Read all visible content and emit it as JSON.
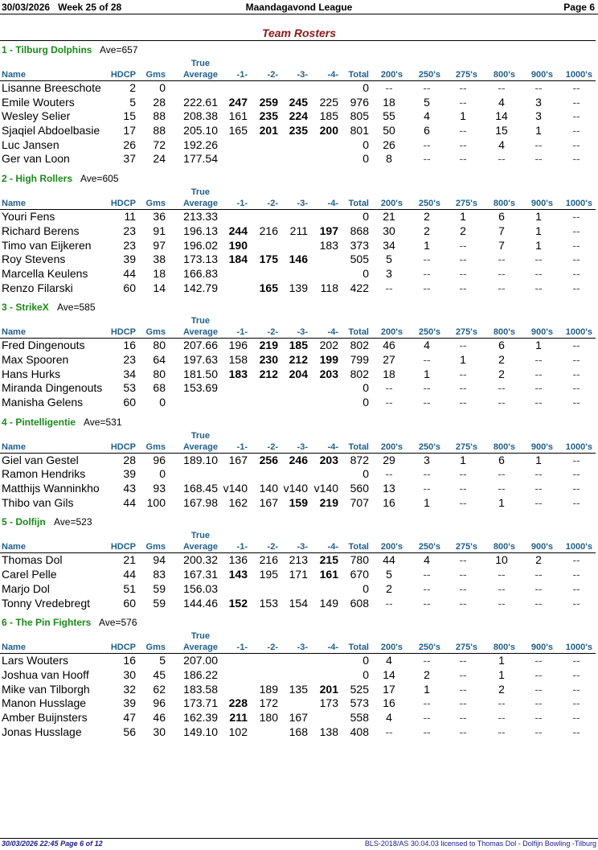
{
  "header": {
    "date": "30/03/2026",
    "week": "Week 25 of 28",
    "league": "Maandagavond League",
    "page": "Page 6"
  },
  "title": "Team Rosters",
  "columns": {
    "true_label": "True",
    "name": "Name",
    "hdcp": "HDCP",
    "gms": "Gms",
    "avg": "Average",
    "g1": "-1-",
    "g2": "-2-",
    "g3": "-3-",
    "g4": "-4-",
    "total": "Total",
    "c200": "200's",
    "c250": "250's",
    "c275": "275's",
    "c800": "800's",
    "c900": "900's",
    "c1000": "1000's"
  },
  "teams": [
    {
      "name": "1 - Tilburg Dolphins",
      "ave": "Ave=657",
      "players": [
        {
          "name": "Lisanne Breeschote",
          "hdcp": "2",
          "gms": "0",
          "avg": "",
          "g1": "",
          "g2": "",
          "g3": "",
          "g4": "",
          "total": "0",
          "c200": "--",
          "c250": "--",
          "c275": "--",
          "c800": "--",
          "c900": "--",
          "c1000": "--",
          "bold": []
        },
        {
          "name": "Emile Wouters",
          "hdcp": "5",
          "gms": "28",
          "avg": "222.61",
          "g1": "247",
          "g2": "259",
          "g3": "245",
          "g4": "225",
          "total": "976",
          "c200": "18",
          "c250": "5",
          "c275": "--",
          "c800": "4",
          "c900": "3",
          "c1000": "--",
          "bold": [
            "g1",
            "g2",
            "g3"
          ]
        },
        {
          "name": "Wesley Selier",
          "hdcp": "15",
          "gms": "88",
          "avg": "208.38",
          "g1": "161",
          "g2": "235",
          "g3": "224",
          "g4": "185",
          "total": "805",
          "c200": "55",
          "c250": "4",
          "c275": "1",
          "c800": "14",
          "c900": "3",
          "c1000": "--",
          "bold": [
            "g2",
            "g3"
          ]
        },
        {
          "name": "Sjaqiel Abdoelbasie",
          "hdcp": "17",
          "gms": "88",
          "avg": "205.10",
          "g1": "165",
          "g2": "201",
          "g3": "235",
          "g4": "200",
          "total": "801",
          "c200": "50",
          "c250": "6",
          "c275": "--",
          "c800": "15",
          "c900": "1",
          "c1000": "--",
          "bold": [
            "g2",
            "g3",
            "g4"
          ]
        },
        {
          "name": "Luc Jansen",
          "hdcp": "26",
          "gms": "72",
          "avg": "192.26",
          "g1": "",
          "g2": "",
          "g3": "",
          "g4": "",
          "total": "0",
          "c200": "26",
          "c250": "--",
          "c275": "--",
          "c800": "4",
          "c900": "--",
          "c1000": "--",
          "bold": []
        },
        {
          "name": "Ger van Loon",
          "hdcp": "37",
          "gms": "24",
          "avg": "177.54",
          "g1": "",
          "g2": "",
          "g3": "",
          "g4": "",
          "total": "0",
          "c200": "8",
          "c250": "--",
          "c275": "--",
          "c800": "--",
          "c900": "--",
          "c1000": "--",
          "bold": []
        }
      ]
    },
    {
      "name": "2 - High Rollers",
      "ave": "Ave=605",
      "players": [
        {
          "name": "Youri Fens",
          "hdcp": "11",
          "gms": "36",
          "avg": "213.33",
          "g1": "",
          "g2": "",
          "g3": "",
          "g4": "",
          "total": "0",
          "c200": "21",
          "c250": "2",
          "c275": "1",
          "c800": "6",
          "c900": "1",
          "c1000": "--",
          "bold": []
        },
        {
          "name": "Richard Berens",
          "hdcp": "23",
          "gms": "91",
          "avg": "196.13",
          "g1": "244",
          "g2": "216",
          "g3": "211",
          "g4": "197",
          "total": "868",
          "c200": "30",
          "c250": "2",
          "c275": "2",
          "c800": "7",
          "c900": "1",
          "c1000": "--",
          "bold": [
            "g1",
            "g4"
          ]
        },
        {
          "name": "Timo van Eijkeren",
          "hdcp": "23",
          "gms": "97",
          "avg": "196.02",
          "g1": "190",
          "g2": "",
          "g3": "",
          "g4": "183",
          "total": "373",
          "c200": "34",
          "c250": "1",
          "c275": "--",
          "c800": "7",
          "c900": "1",
          "c1000": "--",
          "bold": [
            "g1"
          ]
        },
        {
          "name": "Roy Stevens",
          "hdcp": "39",
          "gms": "38",
          "avg": "173.13",
          "g1": "184",
          "g2": "175",
          "g3": "146",
          "g4": "",
          "total": "505",
          "c200": "5",
          "c250": "--",
          "c275": "--",
          "c800": "--",
          "c900": "--",
          "c1000": "--",
          "bold": [
            "g1",
            "g2",
            "g3"
          ]
        },
        {
          "name": "Marcella Keulens",
          "hdcp": "44",
          "gms": "18",
          "avg": "166.83",
          "g1": "",
          "g2": "",
          "g3": "",
          "g4": "",
          "total": "0",
          "c200": "3",
          "c250": "--",
          "c275": "--",
          "c800": "--",
          "c900": "--",
          "c1000": "--",
          "bold": []
        },
        {
          "name": "Renzo Filarski",
          "hdcp": "60",
          "gms": "14",
          "avg": "142.79",
          "g1": "",
          "g2": "165",
          "g3": "139",
          "g4": "118",
          "total": "422",
          "c200": "--",
          "c250": "--",
          "c275": "--",
          "c800": "--",
          "c900": "--",
          "c1000": "--",
          "bold": [
            "g2"
          ]
        }
      ]
    },
    {
      "name": "3 - StrikeX",
      "ave": "Ave=585",
      "players": [
        {
          "name": "Fred Dingenouts",
          "hdcp": "16",
          "gms": "80",
          "avg": "207.66",
          "g1": "196",
          "g2": "219",
          "g3": "185",
          "g4": "202",
          "total": "802",
          "c200": "46",
          "c250": "4",
          "c275": "--",
          "c800": "6",
          "c900": "1",
          "c1000": "--",
          "bold": [
            "g2",
            "g3"
          ]
        },
        {
          "name": "Max Spooren",
          "hdcp": "23",
          "gms": "64",
          "avg": "197.63",
          "g1": "158",
          "g2": "230",
          "g3": "212",
          "g4": "199",
          "total": "799",
          "c200": "27",
          "c250": "--",
          "c275": "1",
          "c800": "2",
          "c900": "--",
          "c1000": "--",
          "bold": [
            "g2",
            "g3",
            "g4"
          ]
        },
        {
          "name": "Hans Hurks",
          "hdcp": "34",
          "gms": "80",
          "avg": "181.50",
          "g1": "183",
          "g2": "212",
          "g3": "204",
          "g4": "203",
          "total": "802",
          "c200": "18",
          "c250": "1",
          "c275": "--",
          "c800": "2",
          "c900": "--",
          "c1000": "--",
          "bold": [
            "g1",
            "g2",
            "g3",
            "g4"
          ]
        },
        {
          "name": "Miranda Dingenouts",
          "hdcp": "53",
          "gms": "68",
          "avg": "153.69",
          "g1": "",
          "g2": "",
          "g3": "",
          "g4": "",
          "total": "0",
          "c200": "--",
          "c250": "--",
          "c275": "--",
          "c800": "--",
          "c900": "--",
          "c1000": "--",
          "bold": []
        },
        {
          "name": "Manisha Gelens",
          "hdcp": "60",
          "gms": "0",
          "avg": "",
          "g1": "",
          "g2": "",
          "g3": "",
          "g4": "",
          "total": "0",
          "c200": "--",
          "c250": "--",
          "c275": "--",
          "c800": "--",
          "c900": "--",
          "c1000": "--",
          "bold": []
        }
      ]
    },
    {
      "name": "4 - Pintelligentie",
      "ave": "Ave=531",
      "players": [
        {
          "name": "Giel van Gestel",
          "hdcp": "28",
          "gms": "96",
          "avg": "189.10",
          "g1": "167",
          "g2": "256",
          "g3": "246",
          "g4": "203",
          "total": "872",
          "c200": "29",
          "c250": "3",
          "c275": "1",
          "c800": "6",
          "c900": "1",
          "c1000": "--",
          "bold": [
            "g2",
            "g3",
            "g4"
          ]
        },
        {
          "name": "Ramon Hendriks",
          "hdcp": "39",
          "gms": "0",
          "avg": "",
          "g1": "",
          "g2": "",
          "g3": "",
          "g4": "",
          "total": "0",
          "c200": "--",
          "c250": "--",
          "c275": "--",
          "c800": "--",
          "c900": "--",
          "c1000": "--",
          "bold": []
        },
        {
          "name": "Matthijs Wanninkho",
          "hdcp": "43",
          "gms": "93",
          "avg": "168.45",
          "g1": "v140",
          "g2": "140",
          "g3": "v140",
          "g4": "v140",
          "total": "560",
          "c200": "13",
          "c250": "--",
          "c275": "--",
          "c800": "--",
          "c900": "--",
          "c1000": "--",
          "bold": []
        },
        {
          "name": "Thibo van Gils",
          "hdcp": "44",
          "gms": "100",
          "avg": "167.98",
          "g1": "162",
          "g2": "167",
          "g3": "159",
          "g4": "219",
          "total": "707",
          "c200": "16",
          "c250": "1",
          "c275": "--",
          "c800": "1",
          "c900": "--",
          "c1000": "--",
          "bold": [
            "g3",
            "g4"
          ]
        }
      ]
    },
    {
      "name": "5 - Dolfijn",
      "ave": "Ave=523",
      "players": [
        {
          "name": "Thomas Dol",
          "hdcp": "21",
          "gms": "94",
          "avg": "200.32",
          "g1": "136",
          "g2": "216",
          "g3": "213",
          "g4": "215",
          "total": "780",
          "c200": "44",
          "c250": "4",
          "c275": "--",
          "c800": "10",
          "c900": "2",
          "c1000": "--",
          "bold": [
            "g4"
          ]
        },
        {
          "name": "Carel Pelle",
          "hdcp": "44",
          "gms": "83",
          "avg": "167.31",
          "g1": "143",
          "g2": "195",
          "g3": "171",
          "g4": "161",
          "total": "670",
          "c200": "5",
          "c250": "--",
          "c275": "--",
          "c800": "--",
          "c900": "--",
          "c1000": "--",
          "bold": [
            "g1",
            "g4"
          ]
        },
        {
          "name": "Marjo Dol",
          "hdcp": "51",
          "gms": "59",
          "avg": "156.03",
          "g1": "",
          "g2": "",
          "g3": "",
          "g4": "",
          "total": "0",
          "c200": "2",
          "c250": "--",
          "c275": "--",
          "c800": "--",
          "c900": "--",
          "c1000": "--",
          "bold": []
        },
        {
          "name": "Tonny Vredebregt",
          "hdcp": "60",
          "gms": "59",
          "avg": "144.46",
          "g1": "152",
          "g2": "153",
          "g3": "154",
          "g4": "149",
          "total": "608",
          "c200": "--",
          "c250": "--",
          "c275": "--",
          "c800": "--",
          "c900": "--",
          "c1000": "--",
          "bold": [
            "g1"
          ]
        }
      ]
    },
    {
      "name": "6 - The Pin Fighters",
      "ave": "Ave=576",
      "players": [
        {
          "name": "Lars Wouters",
          "hdcp": "16",
          "gms": "5",
          "avg": "207.00",
          "g1": "",
          "g2": "",
          "g3": "",
          "g4": "",
          "total": "0",
          "c200": "4",
          "c250": "--",
          "c275": "--",
          "c800": "1",
          "c900": "--",
          "c1000": "--",
          "bold": []
        },
        {
          "name": "Joshua van Hooff",
          "hdcp": "30",
          "gms": "45",
          "avg": "186.22",
          "g1": "",
          "g2": "",
          "g3": "",
          "g4": "",
          "total": "0",
          "c200": "14",
          "c250": "2",
          "c275": "--",
          "c800": "1",
          "c900": "--",
          "c1000": "--",
          "bold": []
        },
        {
          "name": "Mike van Tilborgh",
          "hdcp": "32",
          "gms": "62",
          "avg": "183.58",
          "g1": "",
          "g2": "189",
          "g3": "135",
          "g4": "201",
          "total": "525",
          "c200": "17",
          "c250": "1",
          "c275": "--",
          "c800": "2",
          "c900": "--",
          "c1000": "--",
          "bold": [
            "g4"
          ]
        },
        {
          "name": "Manon Husslage",
          "hdcp": "39",
          "gms": "96",
          "avg": "173.71",
          "g1": "228",
          "g2": "172",
          "g3": "",
          "g4": "173",
          "total": "573",
          "c200": "16",
          "c250": "--",
          "c275": "--",
          "c800": "--",
          "c900": "--",
          "c1000": "--",
          "bold": [
            "g1"
          ]
        },
        {
          "name": "Amber Buijnsters",
          "hdcp": "47",
          "gms": "46",
          "avg": "162.39",
          "g1": "211",
          "g2": "180",
          "g3": "167",
          "g4": "",
          "total": "558",
          "c200": "4",
          "c250": "--",
          "c275": "--",
          "c800": "--",
          "c900": "--",
          "c1000": "--",
          "bold": [
            "g1"
          ]
        },
        {
          "name": "Jonas Husslage",
          "hdcp": "56",
          "gms": "30",
          "avg": "149.10",
          "g1": "102",
          "g2": "",
          "g3": "168",
          "g4": "138",
          "total": "408",
          "c200": "--",
          "c250": "--",
          "c275": "--",
          "c800": "--",
          "c900": "--",
          "c1000": "--",
          "bold": []
        }
      ]
    }
  ],
  "footer": {
    "left": "30/03/2026  22:45  Page 6 of 12",
    "right": "BLS-2018/AS 30.04.03 licensed to Thomas Dol - Dolfijn Bowling -Tilburg"
  }
}
